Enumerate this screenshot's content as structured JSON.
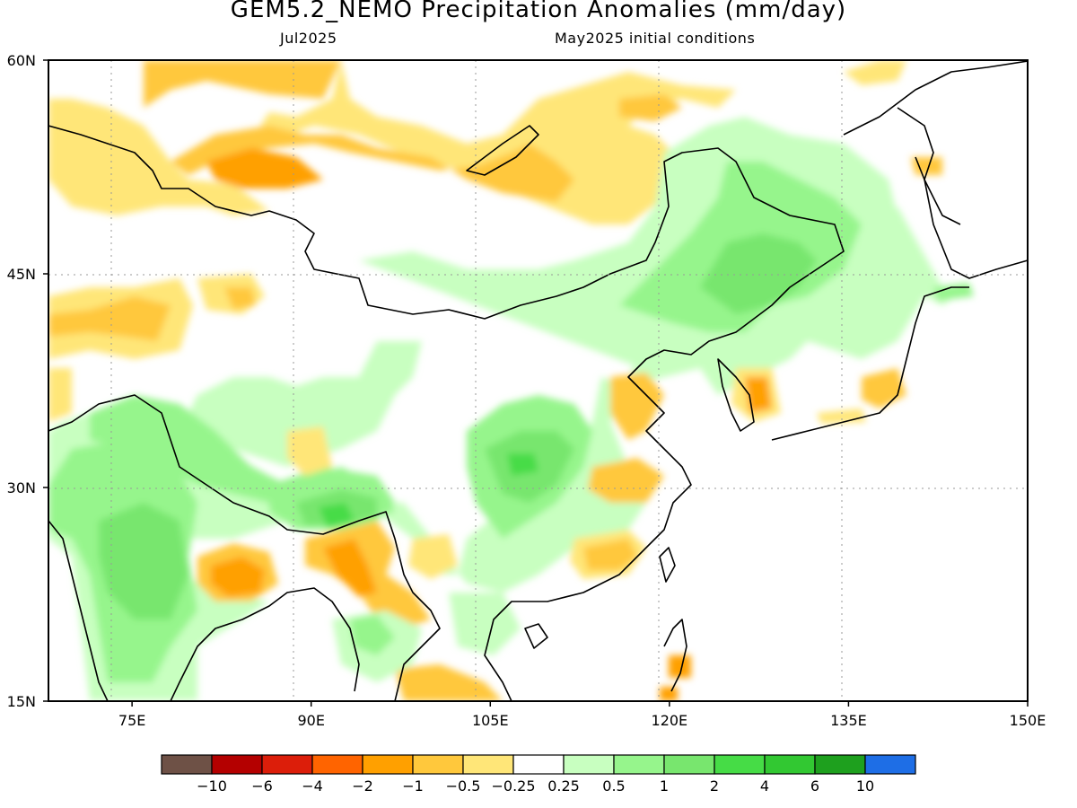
{
  "title": "GEM5.2_NEMO Precipitation Anomalies (mm/day)",
  "subtitle_left": "Jul2025",
  "subtitle_right": "May2025 initial conditions",
  "map": {
    "lon_range": [
      68,
      150
    ],
    "lat_range": [
      15,
      60
    ],
    "lat_ticks": [
      "15N",
      "30N",
      "45N",
      "60N"
    ],
    "lat_tick_values": [
      15,
      30,
      45,
      60
    ],
    "lon_ticks": [
      "75E",
      "90E",
      "105E",
      "120E",
      "135E",
      "150E"
    ],
    "lon_tick_values": [
      75,
      90,
      105,
      120,
      135,
      150
    ],
    "grid": true
  },
  "colorbar": {
    "colors": [
      "#6e5146",
      "#b40000",
      "#dc1e0a",
      "#ff6400",
      "#ffa000",
      "#ffc83c",
      "#ffe678",
      "#ffffff",
      "#c8ffc0",
      "#96f58c",
      "#78e66e",
      "#46dc46",
      "#32c832",
      "#1ea01e",
      "#1e6ee6"
    ],
    "labels": [
      "-10",
      "-6",
      "-4",
      "-2",
      "-1",
      "-0.5",
      "-0.25",
      "0.25",
      "0.5",
      "1",
      "2",
      "4",
      "6",
      "10"
    ]
  },
  "regions": [
    {
      "lon": 84,
      "lat": 56,
      "color": "#ffe678"
    },
    {
      "lon": 88,
      "lat": 53,
      "color": "#ffc83c"
    },
    {
      "lon": 90,
      "lat": 51,
      "color": "#ffa000"
    },
    {
      "lon": 110,
      "lat": 52,
      "color": "#ffc83c"
    },
    {
      "lon": 115,
      "lat": 53,
      "color": "#ffe678"
    },
    {
      "lon": 72,
      "lat": 44,
      "color": "#ffe678"
    },
    {
      "lon": 73,
      "lat": 42,
      "color": "#ffc83c"
    },
    {
      "lon": 86,
      "lat": 45,
      "color": "#ffc83c"
    },
    {
      "lon": 86,
      "lat": 23,
      "color": "#ffc83c"
    },
    {
      "lon": 86,
      "lat": 24,
      "color": "#ffa000"
    },
    {
      "lon": 95,
      "lat": 25,
      "color": "#ffc83c"
    },
    {
      "lon": 96,
      "lat": 24,
      "color": "#ffa000"
    },
    {
      "lon": 101,
      "lat": 26,
      "color": "#ffe678"
    },
    {
      "lon": 114,
      "lat": 29,
      "color": "#ffc83c"
    },
    {
      "lon": 116,
      "lat": 26,
      "color": "#ffc83c"
    },
    {
      "lon": 119,
      "lat": 36,
      "color": "#ffc83c"
    },
    {
      "lon": 127,
      "lat": 36,
      "color": "#ffa000"
    },
    {
      "lon": 119,
      "lat": 45,
      "color": "#96f58c"
    },
    {
      "lon": 124,
      "lat": 46,
      "color": "#78e66e"
    },
    {
      "lon": 110,
      "lat": 32,
      "color": "#96f58c"
    },
    {
      "lon": 110,
      "lat": 32,
      "color": "#78e66e"
    },
    {
      "lon": 78,
      "lat": 23,
      "color": "#96f58c"
    },
    {
      "lon": 79,
      "lat": 25,
      "color": "#78e66e"
    },
    {
      "lon": 93,
      "lat": 28,
      "color": "#46dc46"
    },
    {
      "lon": 85,
      "lat": 33,
      "color": "#c8ffc0"
    },
    {
      "lon": 100,
      "lat": 37,
      "color": "#c8ffc0"
    },
    {
      "lon": 132,
      "lat": 50,
      "color": "#c8ffc0"
    }
  ]
}
